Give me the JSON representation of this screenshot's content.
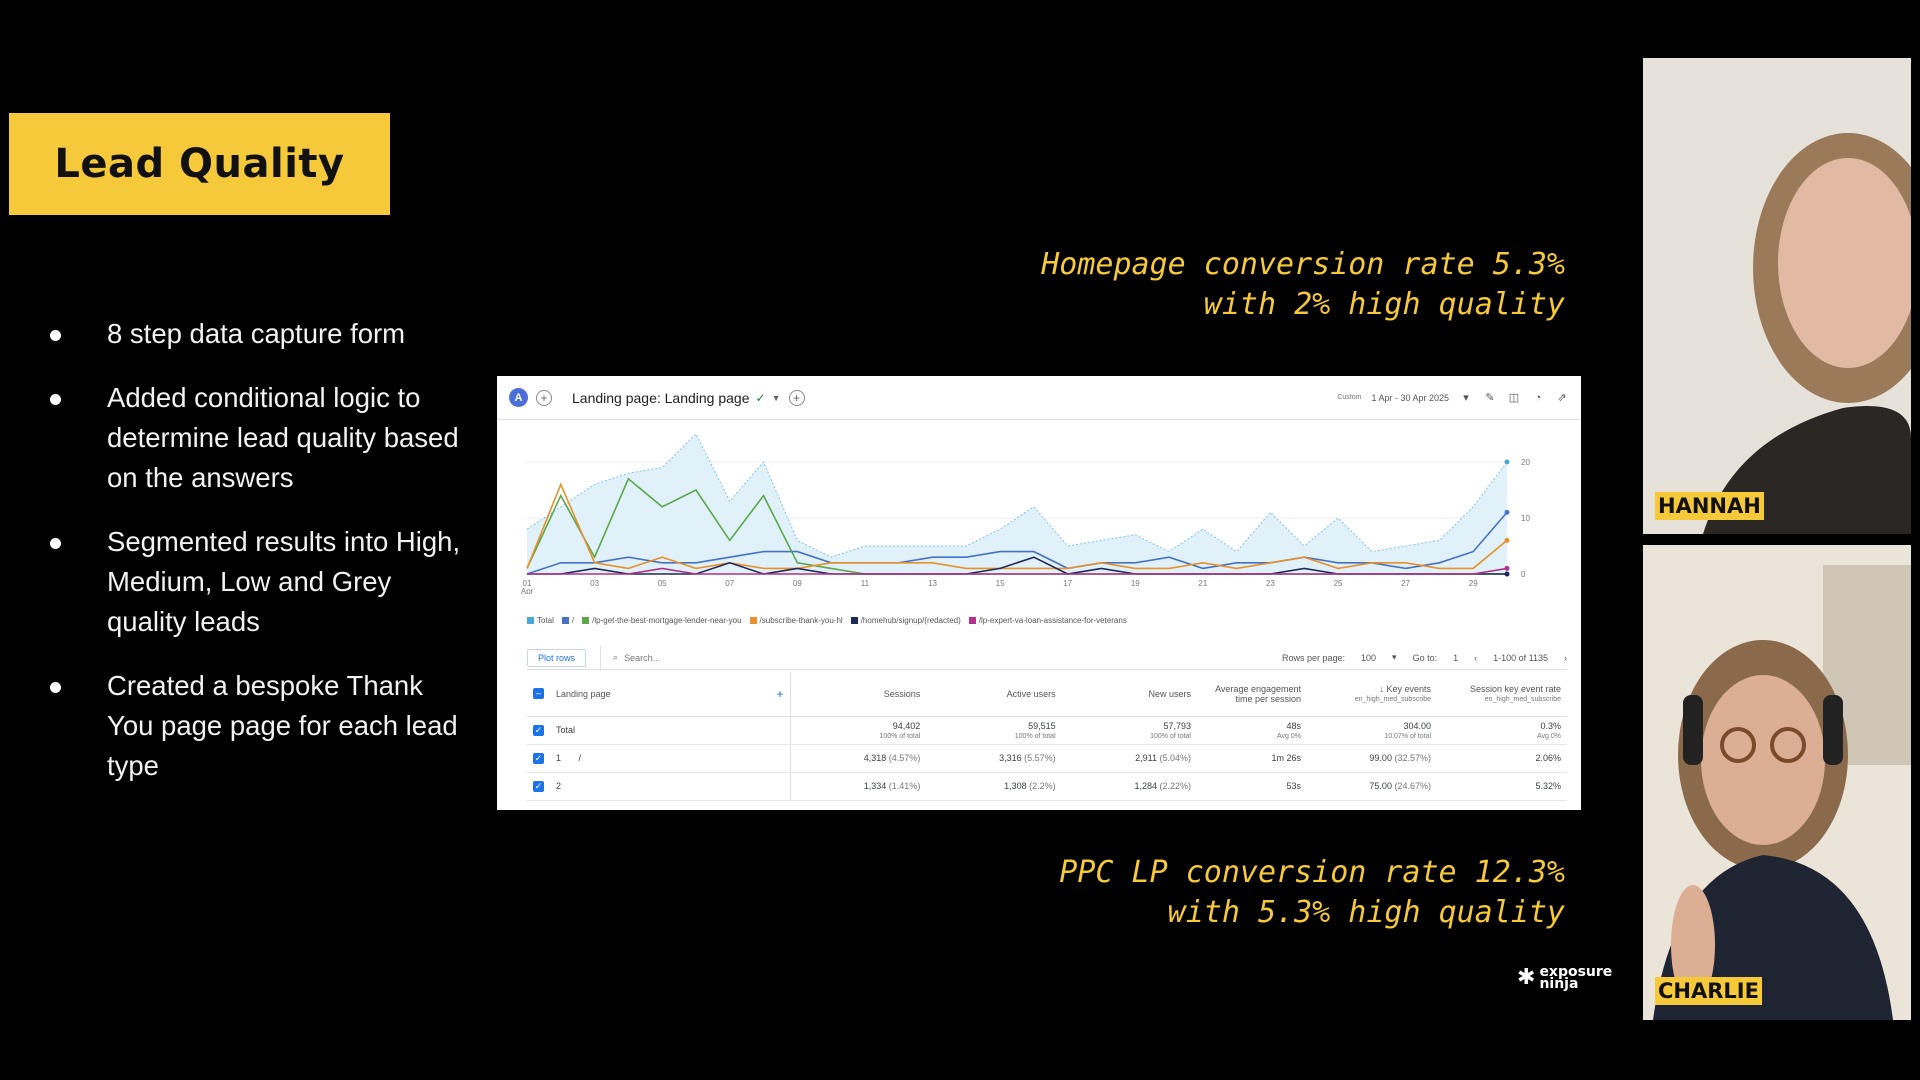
{
  "slide": {
    "title": "Lead Quality",
    "bullets": [
      "8 step data capture form",
      "Added conditional logic to determine lead quality based on the answers",
      "Segmented results into High, Medium, Low and Grey quality leads",
      "Created a bespoke Thank You page page for each lead type"
    ],
    "annotation_top": [
      "Homepage conversion rate 5.3%",
      "with 2% high quality"
    ],
    "annotation_bottom": [
      "PPC LP conversion rate 12.3%",
      "with 5.3% high quality"
    ],
    "logo_text": [
      "exposure",
      "ninja"
    ]
  },
  "analytics": {
    "avatar": "A",
    "report_title": "Landing page: Landing page",
    "date_label": "Custom",
    "date_range": "1 Apr - 30 Apr 2025",
    "legend": [
      {
        "name": "Total",
        "color": "#4aa8d8"
      },
      {
        "name": "/",
        "color": "#4472c4"
      },
      {
        "name": "/lp-get-the-best-mortgage-lender-near-you",
        "color": "#5aa84a"
      },
      {
        "name": "/subscribe-thank-you-hl",
        "color": "#e8902a"
      },
      {
        "name": "/homehub/signup/(redacted)",
        "color": "#1f2a5a"
      },
      {
        "name": "/lp-expert-va-loan-assistance-for-veterans",
        "color": "#b0308a"
      }
    ],
    "toolbar": {
      "plot_rows": "Plot rows",
      "search_placeholder": "Search...",
      "rows_per_page_label": "Rows per page:",
      "rows_per_page": "100",
      "goto_label": "Go to:",
      "goto_value": "1",
      "pagination": "1-100 of 1135"
    },
    "columns": [
      "Landing page",
      "Sessions",
      "Active users",
      "New users",
      "Average engagement time per session",
      "Key events",
      "Session key event rate"
    ],
    "key_events_filter": "en_high_med_subscribe",
    "rate_filter": "en_high_med_subscribe",
    "total_row": {
      "label": "Total",
      "sessions": "94,402",
      "sessions_sub": "100% of total",
      "active": "59,515",
      "active_sub": "100% of total",
      "new": "57,793",
      "new_sub": "100% of total",
      "engagement": "48s",
      "engagement_sub": "Avg 0%",
      "key_events": "304.00",
      "key_events_sub": "10.07% of total",
      "rate": "0.3%",
      "rate_sub": "Avg 0%"
    },
    "rows": [
      {
        "index": "1",
        "page": "/",
        "sessions": "4,318",
        "sessions_pct": "(4.57%)",
        "active": "3,316",
        "active_pct": "(5.57%)",
        "new": "2,911",
        "new_pct": "(5.04%)",
        "engagement": "1m 26s",
        "key_events": "99.00",
        "key_events_pct": "(32.57%)",
        "rate": "2.06%"
      },
      {
        "index": "2",
        "page": "",
        "sessions": "1,334",
        "sessions_pct": "(1.41%)",
        "active": "1,308",
        "active_pct": "(2.2%)",
        "new": "1,284",
        "new_pct": "(2.22%)",
        "engagement": "53s",
        "key_events": "75.00",
        "key_events_pct": "(24.67%)",
        "rate": "5.32%"
      }
    ]
  },
  "chart_data": {
    "type": "line",
    "x": [
      "01 Apr",
      "02",
      "03",
      "04",
      "05",
      "06",
      "07",
      "08",
      "09",
      "10",
      "11",
      "12",
      "13",
      "14",
      "15",
      "16",
      "17",
      "18",
      "19",
      "20",
      "21",
      "22",
      "23",
      "24",
      "25",
      "26",
      "27",
      "28",
      "29",
      "30"
    ],
    "x_tick_labels": [
      "01",
      "Apr",
      "03",
      "05",
      "07",
      "09",
      "11",
      "13",
      "15",
      "17",
      "19",
      "21",
      "23",
      "25",
      "27",
      "29"
    ],
    "y_tick_labels": [
      "20",
      "10",
      "0"
    ],
    "ylim": [
      0,
      25
    ],
    "series": [
      {
        "name": "Total",
        "color": "#9fd3ef",
        "values": [
          8,
          12,
          16,
          18,
          19,
          25,
          13,
          20,
          6,
          3,
          5,
          5,
          5,
          5,
          8,
          12,
          5,
          6,
          7,
          4,
          8,
          4,
          11,
          5,
          10,
          4,
          5,
          6,
          12,
          20
        ]
      },
      {
        "name": "/",
        "color": "#4472c4",
        "values": [
          0,
          2,
          2,
          3,
          2,
          2,
          3,
          4,
          4,
          2,
          2,
          2,
          3,
          3,
          4,
          4,
          1,
          2,
          2,
          3,
          1,
          2,
          2,
          3,
          2,
          2,
          1,
          2,
          4,
          11
        ]
      },
      {
        "name": "/lp-get-the-best-mortgage-lender-near-you",
        "color": "#5aa84a",
        "values": [
          1,
          14,
          3,
          17,
          12,
          15,
          6,
          14,
          2,
          1,
          0,
          0,
          0,
          0,
          0,
          0,
          0,
          0,
          0,
          0,
          0,
          0,
          0,
          0,
          0,
          0,
          0,
          0,
          0,
          0
        ]
      },
      {
        "name": "/subscribe-thank-you-hl",
        "color": "#e8902a",
        "values": [
          1,
          16,
          2,
          1,
          3,
          1,
          2,
          1,
          1,
          2,
          2,
          2,
          2,
          1,
          1,
          1,
          1,
          2,
          1,
          1,
          2,
          1,
          2,
          3,
          1,
          2,
          2,
          1,
          1,
          6
        ]
      },
      {
        "name": "/homehub/signup/(redacted)",
        "color": "#1f2a5a",
        "values": [
          0,
          0,
          1,
          0,
          0,
          0,
          2,
          0,
          1,
          0,
          0,
          0,
          0,
          0,
          1,
          3,
          0,
          1,
          0,
          0,
          0,
          0,
          0,
          1,
          0,
          0,
          0,
          0,
          0,
          0
        ]
      },
      {
        "name": "/lp-expert-va-loan-assistance-for-veterans",
        "color": "#b0308a",
        "values": [
          0,
          0,
          0,
          0,
          1,
          0,
          0,
          0,
          0,
          0,
          0,
          0,
          0,
          0,
          0,
          0,
          0,
          0,
          0,
          0,
          0,
          0,
          0,
          0,
          0,
          0,
          0,
          0,
          0,
          1
        ]
      }
    ]
  },
  "participants": {
    "top_name": "HANNAH",
    "bottom_name": "CHARLIE"
  }
}
